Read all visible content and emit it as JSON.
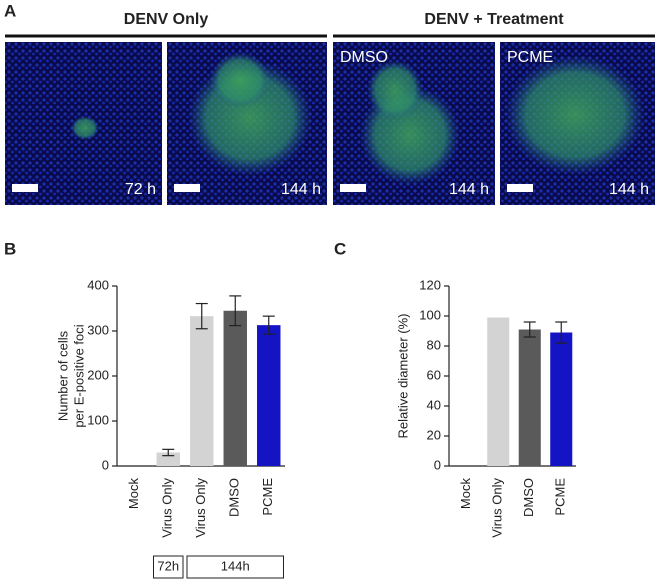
{
  "panel_a": {
    "label": "A",
    "groups": [
      "DENV Only",
      "DENV + Treatment"
    ],
    "images": [
      {
        "time": "72 h"
      },
      {
        "time": "144 h"
      },
      {
        "treatment": "DMSO",
        "time": "144 h"
      },
      {
        "treatment": "PCME",
        "time": "144 h"
      }
    ]
  },
  "chart_data": [
    {
      "type": "bar",
      "panel": "B",
      "ylabel": [
        "Number of cells",
        "per E-positive foci"
      ],
      "categories": [
        "Mock",
        "Virus Only",
        "Virus Only",
        "DMSO",
        "PCME"
      ],
      "values": [
        0,
        30,
        333,
        345,
        313
      ],
      "errors": [
        null,
        7,
        28,
        33,
        20
      ],
      "colors": [
        "#d3d3d3",
        "#d3d3d3",
        "#d3d3d3",
        "#5a5a5a",
        "#1414c4"
      ],
      "ylim": [
        0,
        400
      ],
      "yticks": [
        0,
        100,
        200,
        300,
        400
      ],
      "groups": [
        "72h",
        "144h"
      ]
    },
    {
      "type": "bar",
      "panel": "C",
      "ylabel": [
        "Relative diameter (%)"
      ],
      "categories": [
        "Mock",
        "Virus Only",
        "DMSO",
        "PCME"
      ],
      "values": [
        0,
        99,
        91,
        89
      ],
      "errors": [
        null,
        null,
        5,
        7
      ],
      "colors": [
        "#d3d3d3",
        "#d3d3d3",
        "#5a5a5a",
        "#1414c4"
      ],
      "ylim": [
        0,
        120
      ],
      "yticks": [
        0,
        20,
        40,
        60,
        80,
        100,
        120
      ]
    }
  ]
}
